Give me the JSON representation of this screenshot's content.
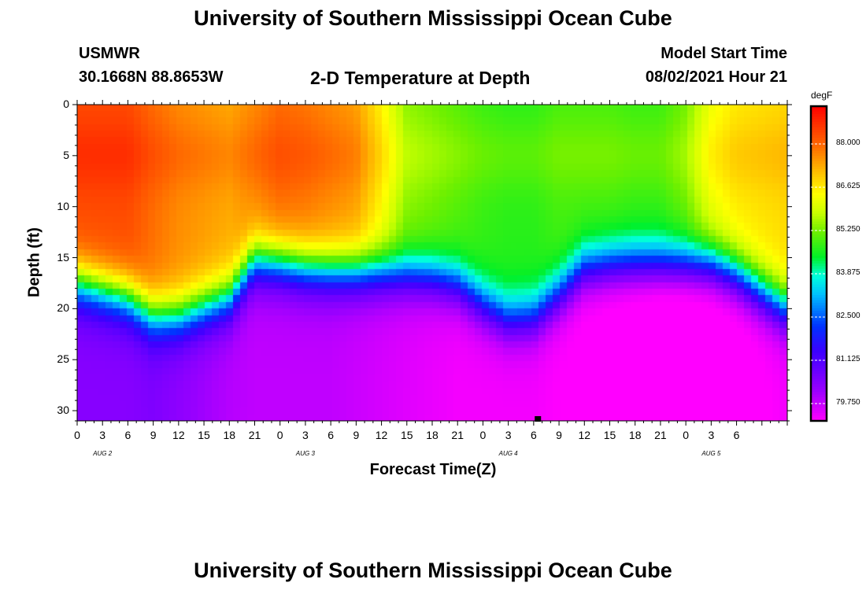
{
  "header": {
    "title_top": "University of Southern Mississippi Ocean Cube",
    "title_bottom": "University of Southern Mississippi Ocean Cube",
    "station": "USMWR",
    "coords": "30.1668N  88.8653W",
    "plot_title": "2-D Temperature at Depth",
    "model_label": "Model Start Time",
    "model_time": "08/02/2021 Hour 21"
  },
  "chart_data": {
    "type": "heatmap",
    "title": "2-D Temperature at Depth",
    "xlabel": "Forecast Time(Z)",
    "ylabel": "Depth (ft)",
    "x_range_hours": [
      0,
      84
    ],
    "ylim": [
      31,
      0
    ],
    "x_tick_labels": [
      "0",
      "3",
      "6",
      "9",
      "12",
      "15",
      "18",
      "21",
      "0",
      "3",
      "6",
      "9",
      "12",
      "15",
      "18",
      "21",
      "0",
      "3",
      "6",
      "9",
      "12",
      "15",
      "18",
      "21",
      "0",
      "3",
      "6"
    ],
    "y_tick_labels": [
      "0",
      "5",
      "10",
      "15",
      "20",
      "25",
      "30"
    ],
    "y_ticks": [
      0,
      5,
      10,
      15,
      20,
      25,
      30
    ],
    "day_labels": [
      {
        "label": "AUG 2",
        "hour": 3
      },
      {
        "label": "AUG 3",
        "hour": 27
      },
      {
        "label": "AUG 4",
        "hour": 51
      },
      {
        "label": "AUG 5",
        "hour": 75
      }
    ],
    "colorbar": {
      "unit": "degF",
      "min": 79.2,
      "max": 89.2,
      "tick_labels": [
        "88.000",
        "86.625",
        "85.250",
        "83.875",
        "82.500",
        "81.125",
        "79.750"
      ],
      "ticks": [
        88.0,
        86.625,
        85.25,
        83.875,
        82.5,
        81.125,
        79.75
      ]
    },
    "key_points": {
      "hours": [
        0,
        6,
        9,
        12,
        18,
        21,
        24,
        27,
        30,
        33,
        36,
        39,
        42,
        45,
        48,
        51,
        54,
        57,
        60,
        63,
        66,
        69,
        72,
        75,
        78,
        84
      ],
      "mixed_layer_temp": [
        88.3,
        88.3,
        87.9,
        87.6,
        87.3,
        87.6,
        87.9,
        87.8,
        87.6,
        87.4,
        86.5,
        85.4,
        85.2,
        85.0,
        84.8,
        84.7,
        84.7,
        84.9,
        84.9,
        84.9,
        84.8,
        84.8,
        85.2,
        86.2,
        86.6,
        86.8
      ],
      "thermocline_depth_ft": [
        17.5,
        19.0,
        20.8,
        20.8,
        19.0,
        15.3,
        15.5,
        16.0,
        16.2,
        16.3,
        16.3,
        16.5,
        16.8,
        17.5,
        19.5,
        21.0,
        20.8,
        18.5,
        16.0,
        15.6,
        15.5,
        15.5,
        15.5,
        15.5,
        16.5,
        20.0
      ],
      "bottom_temp": [
        80.4,
        80.4,
        80.5,
        80.3,
        79.9,
        79.8,
        79.8,
        79.8,
        79.8,
        79.7,
        79.6,
        79.5,
        79.4,
        79.3,
        79.3,
        79.3,
        79.3,
        79.2,
        79.1,
        79.0,
        78.9,
        78.8,
        78.8,
        78.9,
        79.0,
        79.3
      ]
    }
  }
}
